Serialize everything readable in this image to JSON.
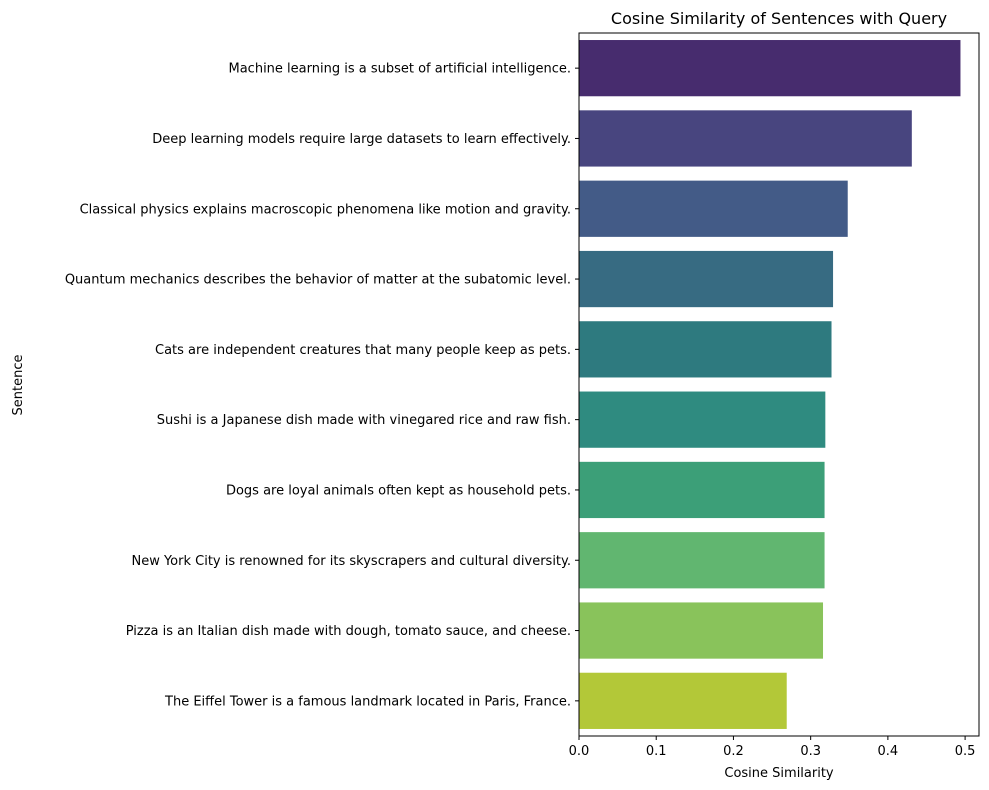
{
  "chart_data": {
    "type": "bar",
    "orientation": "horizontal",
    "title": "Cosine Similarity of Sentences with Query",
    "xlabel": "Cosine Similarity",
    "ylabel": "Sentence",
    "xlim": [
      0,
      0.518
    ],
    "xticks": [
      "0.0",
      "0.1",
      "0.2",
      "0.3",
      "0.4",
      "0.5"
    ],
    "xtick_values": [
      0,
      0.1,
      0.2,
      0.3,
      0.4,
      0.5
    ],
    "grid": false,
    "categories": [
      "Machine learning is a subset of artificial intelligence.",
      "Deep learning models require large datasets to learn effectively.",
      "Classical physics explains macroscopic phenomena like motion and gravity.",
      "Quantum mechanics describes the behavior of matter at the subatomic level.",
      "Cats are independent creatures that many people keep as pets.",
      "Sushi is a Japanese dish made with vinegared rice and raw fish.",
      "Dogs are loyal animals often kept as household pets.",
      "New York City is renowned for its skyscrapers and cultural diversity.",
      "Pizza is an Italian dish made with dough, tomato sauce, and cheese.",
      "The Eiffel Tower is a famous landmark located in Paris, France."
    ],
    "values": [
      0.494,
      0.431,
      0.348,
      0.329,
      0.327,
      0.319,
      0.318,
      0.318,
      0.316,
      0.269
    ],
    "colors": [
      "#472c6e",
      "#48457f",
      "#435b87",
      "#376b82",
      "#2e7a7f",
      "#2f8b80",
      "#3c9f78",
      "#61b670",
      "#89c35b",
      "#b3c838"
    ]
  }
}
